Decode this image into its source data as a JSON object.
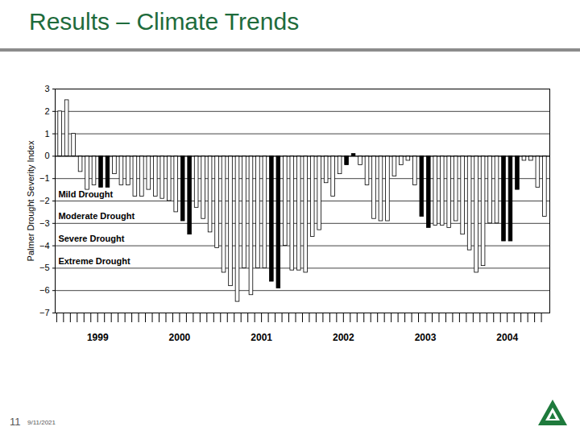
{
  "chart_data": {
    "type": "bar",
    "title": "Results – Climate Trends",
    "page_number": "11",
    "date": "9/11/2021",
    "ylabel": "Palmer Drought Severity Index",
    "categories": [
      null,
      null,
      null,
      null,
      null,
      null,
      "1999",
      null,
      null,
      null,
      null,
      null,
      null,
      null,
      null,
      null,
      null,
      null,
      "2000",
      null,
      null,
      null,
      null,
      null,
      null,
      null,
      null,
      null,
      null,
      null,
      "2001",
      null,
      null,
      null,
      null,
      null,
      null,
      null,
      null,
      null,
      null,
      null,
      "2002",
      null,
      null,
      null,
      null,
      null,
      null,
      null,
      null,
      null,
      null,
      null,
      "2003",
      null,
      null,
      null,
      null,
      null,
      null,
      null,
      null,
      null,
      null,
      null,
      "2004",
      null,
      null,
      null,
      null,
      null
    ],
    "values": [
      2.0,
      2.5,
      1.0,
      -0.7,
      -1.5,
      -1.3,
      -1.4,
      -1.4,
      -0.8,
      -1.3,
      -1.3,
      -1.8,
      -1.8,
      -1.5,
      -1.8,
      -1.9,
      -2.0,
      -2.5,
      -2.9,
      -3.5,
      -2.3,
      -2.8,
      -3.4,
      -4.1,
      -5.2,
      -5.8,
      -6.5,
      -5.0,
      -6.2,
      -5.0,
      -5.0,
      -5.6,
      -5.9,
      -4.0,
      -5.1,
      -5.1,
      -5.2,
      -3.6,
      -3.3,
      -1.2,
      -1.8,
      -0.8,
      -0.4,
      0.1,
      -0.4,
      -1.3,
      -2.8,
      -2.9,
      -2.9,
      -0.9,
      -0.4,
      -0.2,
      -1.3,
      -2.7,
      -3.2,
      -3.1,
      -3.1,
      -3.2,
      -2.9,
      -3.5,
      -4.2,
      -5.2,
      -4.9,
      -3.0,
      -3.0,
      -3.8,
      -3.8,
      -1.5,
      -0.2,
      -0.2,
      -1.4,
      -2.7
    ],
    "colors": [
      "#ffffff",
      "#ffffff",
      "#ffffff",
      "#ffffff",
      "#ffffff",
      "#ffffff",
      "#000000",
      "#000000",
      "#ffffff",
      "#ffffff",
      "#ffffff",
      "#ffffff",
      "#ffffff",
      "#ffffff",
      "#ffffff",
      "#ffffff",
      "#ffffff",
      "#ffffff",
      "#000000",
      "#000000",
      "#ffffff",
      "#ffffff",
      "#ffffff",
      "#ffffff",
      "#ffffff",
      "#ffffff",
      "#ffffff",
      "#ffffff",
      "#ffffff",
      "#ffffff",
      "#ffffff",
      "#000000",
      "#000000",
      "#ffffff",
      "#ffffff",
      "#ffffff",
      "#ffffff",
      "#ffffff",
      "#ffffff",
      "#ffffff",
      "#ffffff",
      "#ffffff",
      "#000000",
      "#000000",
      "#ffffff",
      "#ffffff",
      "#ffffff",
      "#ffffff",
      "#ffffff",
      "#ffffff",
      "#ffffff",
      "#ffffff",
      "#ffffff",
      "#000000",
      "#000000",
      "#ffffff",
      "#ffffff",
      "#ffffff",
      "#ffffff",
      "#ffffff",
      "#ffffff",
      "#ffffff",
      "#ffffff",
      "#ffffff",
      "#ffffff",
      "#000000",
      "#000000",
      "#000000",
      "#ffffff",
      "#ffffff",
      "#ffffff",
      "#ffffff"
    ],
    "ylim": [
      -7,
      3
    ],
    "yticks": [
      -7,
      -6,
      -5,
      -4,
      -3,
      -2,
      -1,
      0,
      1,
      2,
      3
    ],
    "grid": true,
    "annotations": [
      {
        "text": "Mild Drought",
        "y": -1.7
      },
      {
        "text": "Moderate Drought",
        "y": -2.7
      },
      {
        "text": "Severe Drought",
        "y": -3.7
      },
      {
        "text": "Extreme Drought",
        "y": -4.7
      }
    ]
  }
}
